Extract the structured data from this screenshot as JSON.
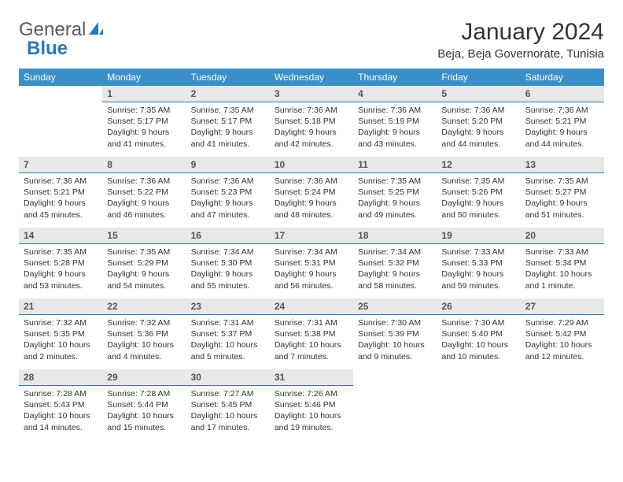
{
  "logo": {
    "text1": "General",
    "text2": "Blue"
  },
  "title": "January 2024",
  "location": "Beja, Beja Governorate, Tunisia",
  "colors": {
    "header_bg": "#3a8fc8",
    "header_text": "#ffffff",
    "daynum_bg": "#e8e8e8",
    "daynum_border": "#2a7ab8",
    "body_text": "#333333",
    "logo_gray": "#5a5a5a",
    "logo_blue": "#2a7ab8"
  },
  "dayNames": [
    "Sunday",
    "Monday",
    "Tuesday",
    "Wednesday",
    "Thursday",
    "Friday",
    "Saturday"
  ],
  "weeks": [
    [
      {
        "n": "",
        "sr": "",
        "ss": "",
        "dl": ""
      },
      {
        "n": "1",
        "sr": "Sunrise: 7:35 AM",
        "ss": "Sunset: 5:17 PM",
        "dl": "Daylight: 9 hours and 41 minutes."
      },
      {
        "n": "2",
        "sr": "Sunrise: 7:35 AM",
        "ss": "Sunset: 5:17 PM",
        "dl": "Daylight: 9 hours and 41 minutes."
      },
      {
        "n": "3",
        "sr": "Sunrise: 7:36 AM",
        "ss": "Sunset: 5:18 PM",
        "dl": "Daylight: 9 hours and 42 minutes."
      },
      {
        "n": "4",
        "sr": "Sunrise: 7:36 AM",
        "ss": "Sunset: 5:19 PM",
        "dl": "Daylight: 9 hours and 43 minutes."
      },
      {
        "n": "5",
        "sr": "Sunrise: 7:36 AM",
        "ss": "Sunset: 5:20 PM",
        "dl": "Daylight: 9 hours and 44 minutes."
      },
      {
        "n": "6",
        "sr": "Sunrise: 7:36 AM",
        "ss": "Sunset: 5:21 PM",
        "dl": "Daylight: 9 hours and 44 minutes."
      }
    ],
    [
      {
        "n": "7",
        "sr": "Sunrise: 7:36 AM",
        "ss": "Sunset: 5:21 PM",
        "dl": "Daylight: 9 hours and 45 minutes."
      },
      {
        "n": "8",
        "sr": "Sunrise: 7:36 AM",
        "ss": "Sunset: 5:22 PM",
        "dl": "Daylight: 9 hours and 46 minutes."
      },
      {
        "n": "9",
        "sr": "Sunrise: 7:36 AM",
        "ss": "Sunset: 5:23 PM",
        "dl": "Daylight: 9 hours and 47 minutes."
      },
      {
        "n": "10",
        "sr": "Sunrise: 7:36 AM",
        "ss": "Sunset: 5:24 PM",
        "dl": "Daylight: 9 hours and 48 minutes."
      },
      {
        "n": "11",
        "sr": "Sunrise: 7:35 AM",
        "ss": "Sunset: 5:25 PM",
        "dl": "Daylight: 9 hours and 49 minutes."
      },
      {
        "n": "12",
        "sr": "Sunrise: 7:35 AM",
        "ss": "Sunset: 5:26 PM",
        "dl": "Daylight: 9 hours and 50 minutes."
      },
      {
        "n": "13",
        "sr": "Sunrise: 7:35 AM",
        "ss": "Sunset: 5:27 PM",
        "dl": "Daylight: 9 hours and 51 minutes."
      }
    ],
    [
      {
        "n": "14",
        "sr": "Sunrise: 7:35 AM",
        "ss": "Sunset: 5:28 PM",
        "dl": "Daylight: 9 hours and 53 minutes."
      },
      {
        "n": "15",
        "sr": "Sunrise: 7:35 AM",
        "ss": "Sunset: 5:29 PM",
        "dl": "Daylight: 9 hours and 54 minutes."
      },
      {
        "n": "16",
        "sr": "Sunrise: 7:34 AM",
        "ss": "Sunset: 5:30 PM",
        "dl": "Daylight: 9 hours and 55 minutes."
      },
      {
        "n": "17",
        "sr": "Sunrise: 7:34 AM",
        "ss": "Sunset: 5:31 PM",
        "dl": "Daylight: 9 hours and 56 minutes."
      },
      {
        "n": "18",
        "sr": "Sunrise: 7:34 AM",
        "ss": "Sunset: 5:32 PM",
        "dl": "Daylight: 9 hours and 58 minutes."
      },
      {
        "n": "19",
        "sr": "Sunrise: 7:33 AM",
        "ss": "Sunset: 5:33 PM",
        "dl": "Daylight: 9 hours and 59 minutes."
      },
      {
        "n": "20",
        "sr": "Sunrise: 7:33 AM",
        "ss": "Sunset: 5:34 PM",
        "dl": "Daylight: 10 hours and 1 minute."
      }
    ],
    [
      {
        "n": "21",
        "sr": "Sunrise: 7:32 AM",
        "ss": "Sunset: 5:35 PM",
        "dl": "Daylight: 10 hours and 2 minutes."
      },
      {
        "n": "22",
        "sr": "Sunrise: 7:32 AM",
        "ss": "Sunset: 5:36 PM",
        "dl": "Daylight: 10 hours and 4 minutes."
      },
      {
        "n": "23",
        "sr": "Sunrise: 7:31 AM",
        "ss": "Sunset: 5:37 PM",
        "dl": "Daylight: 10 hours and 5 minutes."
      },
      {
        "n": "24",
        "sr": "Sunrise: 7:31 AM",
        "ss": "Sunset: 5:38 PM",
        "dl": "Daylight: 10 hours and 7 minutes."
      },
      {
        "n": "25",
        "sr": "Sunrise: 7:30 AM",
        "ss": "Sunset: 5:39 PM",
        "dl": "Daylight: 10 hours and 9 minutes."
      },
      {
        "n": "26",
        "sr": "Sunrise: 7:30 AM",
        "ss": "Sunset: 5:40 PM",
        "dl": "Daylight: 10 hours and 10 minutes."
      },
      {
        "n": "27",
        "sr": "Sunrise: 7:29 AM",
        "ss": "Sunset: 5:42 PM",
        "dl": "Daylight: 10 hours and 12 minutes."
      }
    ],
    [
      {
        "n": "28",
        "sr": "Sunrise: 7:28 AM",
        "ss": "Sunset: 5:43 PM",
        "dl": "Daylight: 10 hours and 14 minutes."
      },
      {
        "n": "29",
        "sr": "Sunrise: 7:28 AM",
        "ss": "Sunset: 5:44 PM",
        "dl": "Daylight: 10 hours and 15 minutes."
      },
      {
        "n": "30",
        "sr": "Sunrise: 7:27 AM",
        "ss": "Sunset: 5:45 PM",
        "dl": "Daylight: 10 hours and 17 minutes."
      },
      {
        "n": "31",
        "sr": "Sunrise: 7:26 AM",
        "ss": "Sunset: 5:46 PM",
        "dl": "Daylight: 10 hours and 19 minutes."
      },
      {
        "n": "",
        "sr": "",
        "ss": "",
        "dl": ""
      },
      {
        "n": "",
        "sr": "",
        "ss": "",
        "dl": ""
      },
      {
        "n": "",
        "sr": "",
        "ss": "",
        "dl": ""
      }
    ]
  ]
}
